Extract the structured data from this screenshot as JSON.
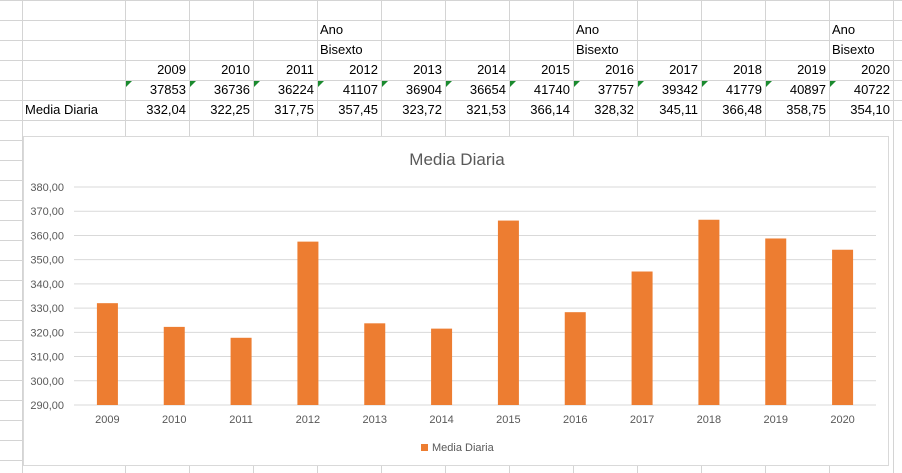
{
  "sheet": {
    "label_row": "Media Diaria",
    "note_line1": "Ano",
    "note_line2": "Bisexto",
    "years": [
      "2009",
      "2010",
      "2011",
      "2012",
      "2013",
      "2014",
      "2015",
      "2016",
      "2017",
      "2018",
      "2019",
      "2020"
    ],
    "totals": [
      "37853",
      "36736",
      "36224",
      "41107",
      "36904",
      "36654",
      "41740",
      "37757",
      "39342",
      "41779",
      "40897",
      "40722"
    ],
    "averages": [
      "332,04",
      "322,25",
      "317,75",
      "357,45",
      "323,72",
      "321,53",
      "366,14",
      "328,32",
      "345,11",
      "366,48",
      "358,75",
      "354,10"
    ],
    "leap_year_columns": [
      3,
      7,
      11
    ]
  },
  "chart_data": {
    "type": "bar",
    "title": "Media Diaria",
    "categories": [
      "2009",
      "2010",
      "2011",
      "2012",
      "2013",
      "2014",
      "2015",
      "2016",
      "2017",
      "2018",
      "2019",
      "2020"
    ],
    "series": [
      {
        "name": "Media Diaria",
        "values": [
          332.04,
          322.25,
          317.75,
          357.45,
          323.72,
          321.53,
          366.14,
          328.32,
          345.11,
          366.48,
          358.75,
          354.1
        ],
        "color": "#ED7D31"
      }
    ],
    "y_ticks": [
      "290,00",
      "300,00",
      "310,00",
      "320,00",
      "330,00",
      "340,00",
      "350,00",
      "360,00",
      "370,00",
      "380,00"
    ],
    "ylim": [
      290,
      380
    ],
    "grid": true,
    "legend": "bottom"
  }
}
